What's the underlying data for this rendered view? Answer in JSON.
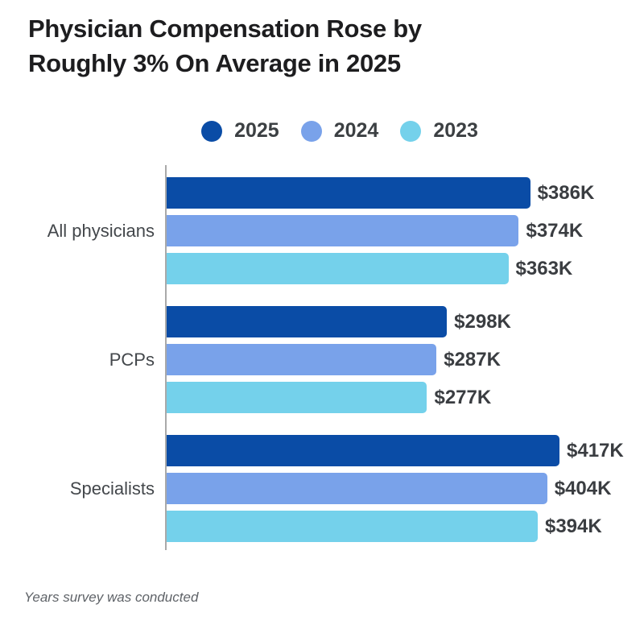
{
  "header": {
    "title": "Physician Compensation Rose by Roughly 3% On Average in 2025",
    "title_lines": [
      "Physician Compensation Rose by",
      "Roughly 3% On Average in 2025"
    ]
  },
  "legend": {
    "items": [
      {
        "label": "2025",
        "color": "#0a4ca6"
      },
      {
        "label": "2024",
        "color": "#79a2ea"
      },
      {
        "label": "2023",
        "color": "#74d1eb"
      }
    ]
  },
  "footnote": "Years survey was conducted",
  "chart_data": {
    "type": "bar",
    "orientation": "horizontal",
    "title": "Physician Compensation Rose by Roughly 3% On Average in 2025",
    "categories": [
      "All physicians",
      "PCPs",
      "Specialists"
    ],
    "series": [
      {
        "name": "2025",
        "color": "#0a4ca6",
        "values": [
          386,
          298,
          417
        ]
      },
      {
        "name": "2024",
        "color": "#79a2ea",
        "values": [
          374,
          287,
          404
        ]
      },
      {
        "name": "2023",
        "color": "#74d1eb",
        "values": [
          363,
          277,
          394
        ]
      }
    ],
    "value_unit": "$K",
    "xlim": [
      0,
      417
    ],
    "grid": false,
    "legend_position": "top",
    "note": "Years survey was conducted",
    "groups": [
      {
        "category": "All physicians",
        "bars": [
          {
            "year": "2025",
            "value": 386,
            "label": "$386K"
          },
          {
            "year": "2024",
            "value": 374,
            "label": "$374K"
          },
          {
            "year": "2023",
            "value": 363,
            "label": "$363K"
          }
        ]
      },
      {
        "category": "PCPs",
        "bars": [
          {
            "year": "2025",
            "value": 298,
            "label": "$298K"
          },
          {
            "year": "2024",
            "value": 287,
            "label": "$287K"
          },
          {
            "year": "2023",
            "value": 277,
            "label": "$277K"
          }
        ]
      },
      {
        "category": "Specialists",
        "bars": [
          {
            "year": "2025",
            "value": 417,
            "label": "$417K"
          },
          {
            "year": "2024",
            "value": 404,
            "label": "$404K"
          },
          {
            "year": "2023",
            "value": 394,
            "label": "$394K"
          }
        ]
      }
    ]
  }
}
